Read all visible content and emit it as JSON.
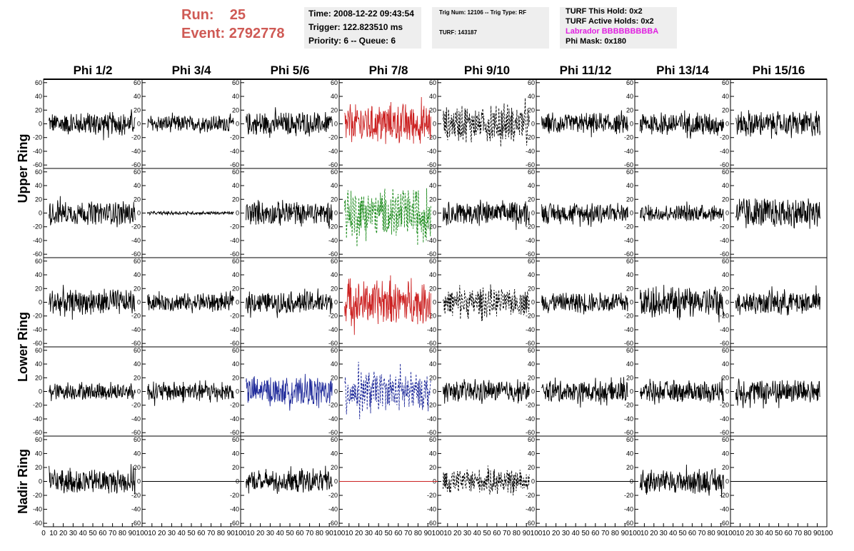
{
  "header": {
    "run_label": "Run:",
    "run_value": "25",
    "event_label": "Event:",
    "event_value": "2792778"
  },
  "info_box_1": {
    "time": "Time: 2008-12-22 09:43:54",
    "trigger": "Trigger: 122.823510 ms",
    "priority": "Priority: 6 -- Queue: 6"
  },
  "info_box_2": {
    "trig_num": "Trig Num: 12106 -- Trig Type: RF",
    "turf": "TURF: 143187"
  },
  "info_box_3": {
    "this_hold": "TURF This Hold: 0x2",
    "active_holds": "TURF Active Holds: 0x2",
    "labrador": "Labrador BBBBBBBBBA",
    "phi_mask": "Phi Mask: 0x180"
  },
  "colors": {
    "header_red": "#cf5a55",
    "trace_black": "#000000",
    "trace_red": "#cc2222",
    "trace_green": "#1a8a1a",
    "trace_blue": "#1f2a9a",
    "labrador_magenta": "#e020e0"
  },
  "chart_data": {
    "type": "line",
    "columns": [
      "Phi 1/2",
      "Phi 3/4",
      "Phi 5/6",
      "Phi 7/8",
      "Phi 9/10",
      "Phi 11/12",
      "Phi 13/14",
      "Phi 15/16"
    ],
    "rows": [
      "Upper Ring",
      "Upper Ring",
      "Lower Ring",
      "Lower Ring",
      "Nadir Ring"
    ],
    "row_labels": [
      "Upper Ring",
      "Lower Ring",
      "Nadir Ring"
    ],
    "ylim": [
      -65,
      65
    ],
    "xlim": [
      0,
      100
    ],
    "y_ticks": [
      60,
      40,
      20,
      0,
      -20,
      -40,
      -60
    ],
    "y_tick_labels": [
      "60",
      "40",
      "20",
      "0",
      "-20",
      "-40",
      "-60"
    ],
    "x_ticks": [
      0,
      10,
      20,
      30,
      40,
      50,
      60,
      70,
      80,
      90,
      100
    ],
    "x_tick_labels": [
      "0",
      "10",
      "20",
      "30",
      "40",
      "50",
      "60",
      "70",
      "80",
      "90",
      "100"
    ],
    "panels": [
      {
        "row": 0,
        "col": 0,
        "color": "black",
        "style": "solid",
        "amp": 14
      },
      {
        "row": 0,
        "col": 1,
        "color": "black",
        "style": "solid",
        "amp": 10
      },
      {
        "row": 0,
        "col": 2,
        "color": "black",
        "style": "solid",
        "amp": 14
      },
      {
        "row": 0,
        "col": 3,
        "color": "red",
        "style": "solid",
        "amp": 24
      },
      {
        "row": 0,
        "col": 4,
        "color": "black",
        "style": "dashed",
        "amp": 22
      },
      {
        "row": 0,
        "col": 5,
        "color": "black",
        "style": "solid",
        "amp": 12
      },
      {
        "row": 0,
        "col": 6,
        "color": "black",
        "style": "solid",
        "amp": 14
      },
      {
        "row": 0,
        "col": 7,
        "color": "black",
        "style": "solid",
        "amp": 15
      },
      {
        "row": 1,
        "col": 0,
        "color": "black",
        "style": "solid",
        "amp": 14
      },
      {
        "row": 1,
        "col": 1,
        "color": "black",
        "style": "solid",
        "amp": 2
      },
      {
        "row": 1,
        "col": 2,
        "color": "black",
        "style": "solid",
        "amp": 14
      },
      {
        "row": 1,
        "col": 3,
        "color": "green",
        "style": "dashed",
        "amp": 30
      },
      {
        "row": 1,
        "col": 4,
        "color": "black",
        "style": "solid",
        "amp": 14
      },
      {
        "row": 1,
        "col": 5,
        "color": "black",
        "style": "solid",
        "amp": 12
      },
      {
        "row": 1,
        "col": 6,
        "color": "black",
        "style": "solid",
        "amp": 10
      },
      {
        "row": 1,
        "col": 7,
        "color": "black",
        "style": "solid",
        "amp": 18
      },
      {
        "row": 2,
        "col": 0,
        "color": "black",
        "style": "solid",
        "amp": 15
      },
      {
        "row": 2,
        "col": 1,
        "color": "black",
        "style": "solid",
        "amp": 11
      },
      {
        "row": 2,
        "col": 2,
        "color": "black",
        "style": "solid",
        "amp": 13
      },
      {
        "row": 2,
        "col": 3,
        "color": "red",
        "style": "solid",
        "amp": 26
      },
      {
        "row": 2,
        "col": 4,
        "color": "black",
        "style": "dashed",
        "amp": 16
      },
      {
        "row": 2,
        "col": 5,
        "color": "black",
        "style": "solid",
        "amp": 12
      },
      {
        "row": 2,
        "col": 6,
        "color": "black",
        "style": "solid",
        "amp": 18
      },
      {
        "row": 2,
        "col": 7,
        "color": "black",
        "style": "solid",
        "amp": 14
      },
      {
        "row": 3,
        "col": 0,
        "color": "black",
        "style": "solid",
        "amp": 10
      },
      {
        "row": 3,
        "col": 1,
        "color": "black",
        "style": "solid",
        "amp": 12
      },
      {
        "row": 3,
        "col": 2,
        "color": "blue",
        "style": "solid",
        "amp": 16
      },
      {
        "row": 3,
        "col": 3,
        "color": "blue",
        "style": "dashed",
        "amp": 24
      },
      {
        "row": 3,
        "col": 4,
        "color": "black",
        "style": "solid",
        "amp": 12
      },
      {
        "row": 3,
        "col": 5,
        "color": "black",
        "style": "solid",
        "amp": 13
      },
      {
        "row": 3,
        "col": 6,
        "color": "black",
        "style": "solid",
        "amp": 13
      },
      {
        "row": 3,
        "col": 7,
        "color": "black",
        "style": "solid",
        "amp": 16
      },
      {
        "row": 4,
        "col": 0,
        "color": "black",
        "style": "solid",
        "amp": 14
      },
      {
        "row": 4,
        "col": 1,
        "color": "black",
        "style": "flat",
        "amp": 0
      },
      {
        "row": 4,
        "col": 2,
        "color": "black",
        "style": "solid",
        "amp": 13
      },
      {
        "row": 4,
        "col": 3,
        "color": "red",
        "style": "flat",
        "amp": 0
      },
      {
        "row": 4,
        "col": 4,
        "color": "black",
        "style": "dashed",
        "amp": 14
      },
      {
        "row": 4,
        "col": 5,
        "color": "black",
        "style": "flat",
        "amp": 0
      },
      {
        "row": 4,
        "col": 6,
        "color": "black",
        "style": "solid",
        "amp": 14
      },
      {
        "row": 4,
        "col": 7,
        "color": "black",
        "style": "flat",
        "amp": 0
      }
    ]
  }
}
